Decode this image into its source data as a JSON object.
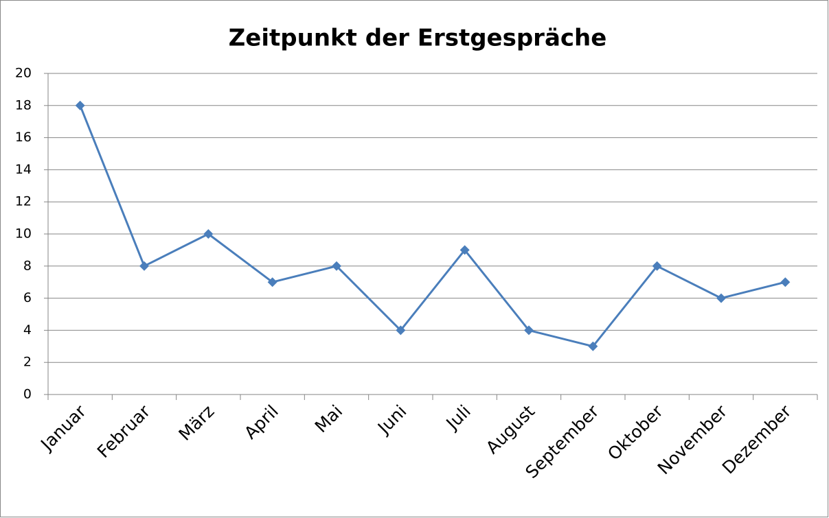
{
  "chart_data": {
    "type": "line",
    "title": "Zeitpunkt der Erstgespräche",
    "categories": [
      "Januar",
      "Februar",
      "März",
      "April",
      "Mai",
      "Juni",
      "Juli",
      "August",
      "September",
      "Oktober",
      "November",
      "Dezember"
    ],
    "values": [
      18,
      8,
      10,
      7,
      8,
      4,
      9,
      4,
      3,
      8,
      6,
      7
    ],
    "color": "#4a7ebb",
    "ylim": [
      0,
      20
    ],
    "yticks": [
      0,
      2,
      4,
      6,
      8,
      10,
      12,
      14,
      16,
      18,
      20
    ],
    "grid": true
  }
}
